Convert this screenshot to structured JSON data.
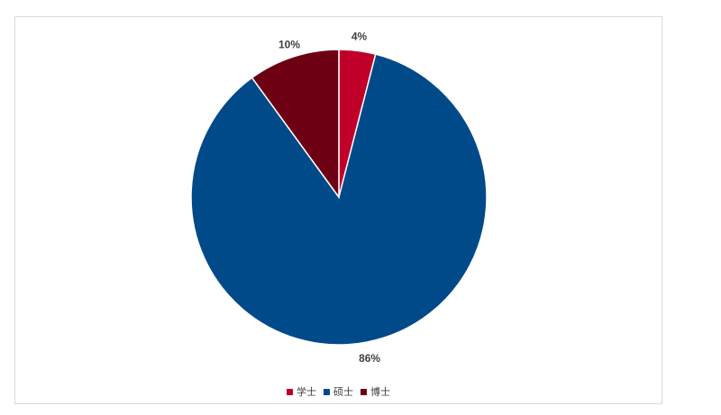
{
  "chart_data": {
    "type": "pie",
    "title": "",
    "slices": [
      {
        "name": "学士",
        "value": 4,
        "label": "4%",
        "color": "#c00028"
      },
      {
        "name": "硕士",
        "value": 86,
        "label": "86%",
        "color": "#004a8a"
      },
      {
        "name": "博士",
        "value": 10,
        "label": "10%",
        "color": "#6e0014"
      }
    ],
    "start_angle_deg": 0,
    "direction": "clockwise",
    "legend_position": "bottom"
  }
}
